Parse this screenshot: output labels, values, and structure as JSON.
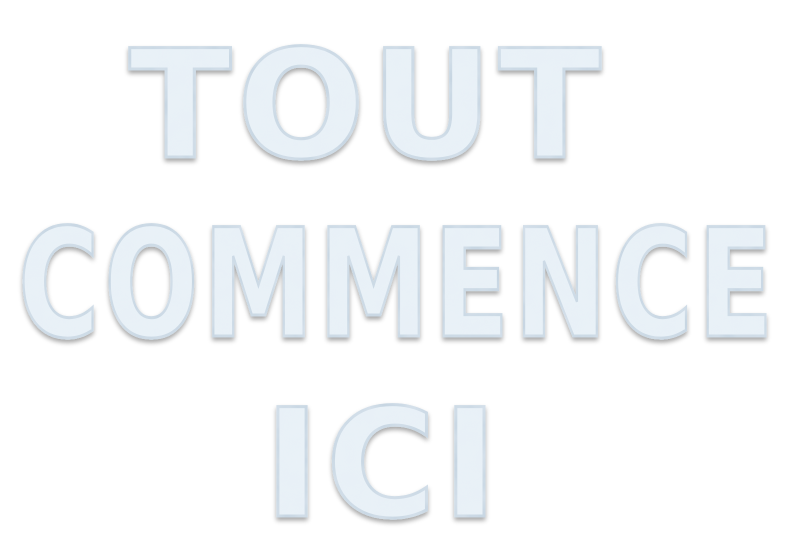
{
  "headline": {
    "line1": "TOUT",
    "line2": "COMMENCE",
    "line3": "ICI"
  },
  "colors": {
    "background": "#ffffff",
    "snow_fill": "#e9f2f8",
    "snow_shadow": "#b6c7d6",
    "snow_highlight": "#ffffff"
  }
}
